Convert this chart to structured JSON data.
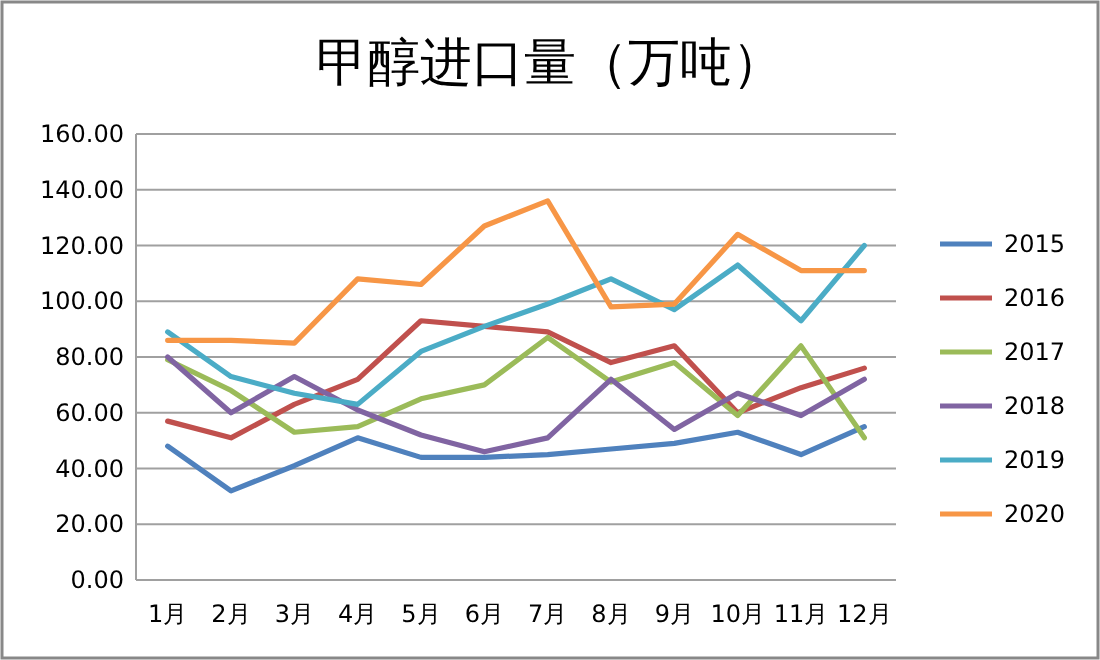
{
  "chart_data": {
    "type": "line",
    "title": "甲醇进口量（万吨）",
    "categories": [
      "1月",
      "2月",
      "3月",
      "4月",
      "5月",
      "6月",
      "7月",
      "8月",
      "9月",
      "10月",
      "11月",
      "12月"
    ],
    "series": [
      {
        "name": "2015",
        "color": "#4f81bd",
        "values": [
          48,
          32,
          41,
          51,
          44,
          44,
          45,
          47,
          49,
          53,
          45,
          55
        ]
      },
      {
        "name": "2016",
        "color": "#c0504d",
        "values": [
          57,
          51,
          63,
          72,
          93,
          91,
          89,
          78,
          84,
          60,
          69,
          76
        ]
      },
      {
        "name": "2017",
        "color": "#9bbb59",
        "values": [
          79,
          68,
          53,
          55,
          65,
          70,
          87,
          71,
          78,
          59,
          84,
          51
        ]
      },
      {
        "name": "2018",
        "color": "#8064a2",
        "values": [
          80,
          60,
          73,
          61,
          52,
          46,
          51,
          72,
          54,
          67,
          59,
          72
        ]
      },
      {
        "name": "2019",
        "color": "#4bacc6",
        "values": [
          89,
          73,
          67,
          63,
          82,
          91,
          99,
          108,
          97,
          113,
          93,
          120
        ]
      },
      {
        "name": "2020",
        "color": "#f79646",
        "values": [
          86,
          86,
          85,
          108,
          106,
          127,
          136,
          98,
          99,
          124,
          111,
          111
        ]
      }
    ],
    "ylim": [
      0,
      160
    ],
    "yticks": [
      {
        "value": 0,
        "label": "0.00"
      },
      {
        "value": 20,
        "label": "20.00"
      },
      {
        "value": 40,
        "label": "40.00"
      },
      {
        "value": 60,
        "label": "60.00"
      },
      {
        "value": 80,
        "label": "80.00"
      },
      {
        "value": 100,
        "label": "100.00"
      },
      {
        "value": 120,
        "label": "120.00"
      },
      {
        "value": 140,
        "label": "140.00"
      },
      {
        "value": 160,
        "label": "160.00"
      }
    ],
    "grid": "y",
    "legend": "right",
    "marker": "none",
    "line_style": "solid"
  }
}
